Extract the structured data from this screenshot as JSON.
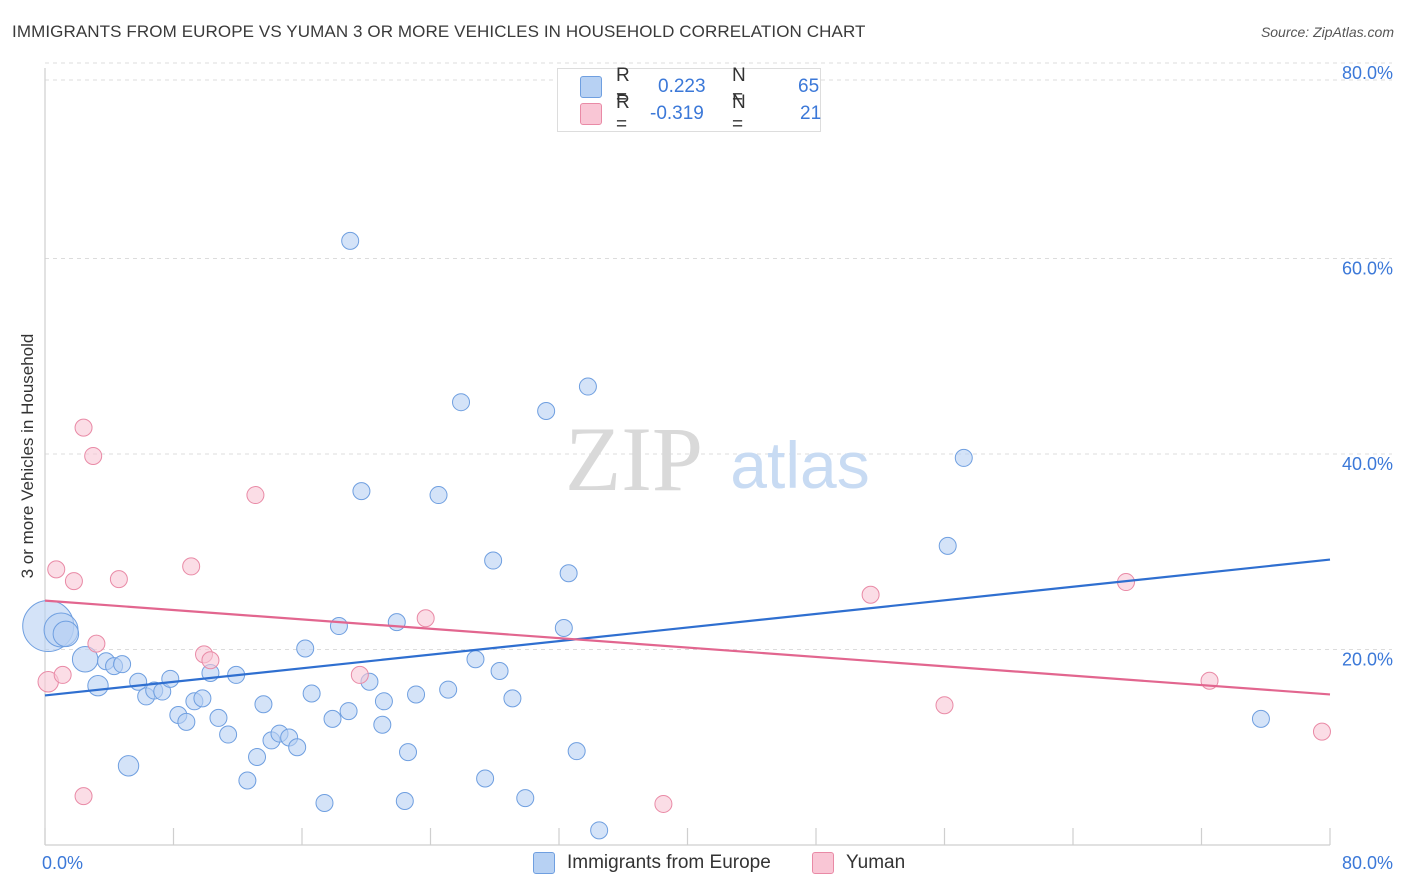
{
  "header": {
    "title": "IMMIGRANTS FROM EUROPE VS YUMAN 3 OR MORE VEHICLES IN HOUSEHOLD CORRELATION CHART",
    "source": "Source: ZipAtlas.com"
  },
  "watermark": {
    "zip": "ZIP",
    "atlas": "atlas"
  },
  "legend": {
    "rows": [
      {
        "r_label": "R =",
        "r_value": "0.223",
        "n_label": "N =",
        "n_value": "65",
        "color": "#a9c8f0"
      },
      {
        "r_label": "R =",
        "r_value": "-0.319",
        "n_label": "N =",
        "n_value": "21",
        "color": "#f7b9cb"
      }
    ]
  },
  "chart_data": {
    "type": "scatter",
    "title": "IMMIGRANTS FROM EUROPE VS YUMAN 3 OR MORE VEHICLES IN HOUSEHOLD CORRELATION CHART",
    "xlabel": "",
    "ylabel": "3 or more Vehicles in Household",
    "xlim": [
      0,
      80
    ],
    "ylim": [
      0,
      80
    ],
    "x_tick_labels": [
      "0.0%",
      "80.0%"
    ],
    "y_ticks": [
      20,
      40,
      60,
      80
    ],
    "y_tick_labels": [
      "20.0%",
      "40.0%",
      "60.0%",
      "80.0%"
    ],
    "grid": true,
    "legend_position": "bottom",
    "series": [
      {
        "name": "Immigrants from Europe",
        "color": "#6f9fe0",
        "fill": "#b7d1f3",
        "trend": {
          "x": [
            0,
            80
          ],
          "y": [
            15.3,
            29.2
          ],
          "color": "#2f6fd0"
        },
        "points": [
          [
            0.2,
            22.4,
            3
          ],
          [
            1.0,
            22.0,
            2
          ],
          [
            1.3,
            21.6,
            1.5
          ],
          [
            2.5,
            19.0,
            1.5
          ],
          [
            3.3,
            16.3,
            1.2
          ],
          [
            3.8,
            18.8,
            1
          ],
          [
            4.3,
            18.3,
            1
          ],
          [
            4.8,
            18.5,
            1
          ],
          [
            5.2,
            8.1,
            1.2
          ],
          [
            5.8,
            16.7,
            1
          ],
          [
            6.3,
            15.2,
            1
          ],
          [
            6.8,
            15.8,
            1
          ],
          [
            7.3,
            15.7,
            1
          ],
          [
            7.8,
            17.0,
            1
          ],
          [
            8.3,
            13.3,
            1
          ],
          [
            8.8,
            12.6,
            1
          ],
          [
            9.3,
            14.7,
            1
          ],
          [
            9.8,
            15.0,
            1
          ],
          [
            10.3,
            17.6,
            1
          ],
          [
            10.8,
            13.0,
            1
          ],
          [
            11.4,
            11.3,
            1
          ],
          [
            11.9,
            17.4,
            1
          ],
          [
            12.6,
            6.6,
            1
          ],
          [
            13.2,
            9.0,
            1
          ],
          [
            13.6,
            14.4,
            1
          ],
          [
            14.1,
            10.7,
            1
          ],
          [
            14.6,
            11.4,
            1
          ],
          [
            15.2,
            11.0,
            1
          ],
          [
            15.7,
            10.0,
            1
          ],
          [
            16.2,
            20.1,
            1
          ],
          [
            16.6,
            15.5,
            1
          ],
          [
            17.4,
            4.3,
            1
          ],
          [
            17.9,
            12.9,
            1
          ],
          [
            18.3,
            22.4,
            1
          ],
          [
            18.9,
            13.7,
            1
          ],
          [
            19.0,
            61.8,
            1
          ],
          [
            19.7,
            36.2,
            1
          ],
          [
            20.2,
            16.7,
            1
          ],
          [
            21.0,
            12.3,
            1
          ],
          [
            21.1,
            14.7,
            1
          ],
          [
            21.9,
            22.8,
            1
          ],
          [
            22.4,
            4.5,
            1
          ],
          [
            22.6,
            9.5,
            1
          ],
          [
            23.1,
            15.4,
            1
          ],
          [
            24.5,
            35.8,
            1
          ],
          [
            25.1,
            15.9,
            1
          ],
          [
            25.9,
            45.3,
            1
          ],
          [
            26.8,
            19.0,
            1
          ],
          [
            27.4,
            6.8,
            1
          ],
          [
            27.9,
            29.1,
            1
          ],
          [
            28.3,
            17.8,
            1
          ],
          [
            29.1,
            15.0,
            1
          ],
          [
            29.9,
            4.8,
            1
          ],
          [
            31.2,
            44.4,
            1
          ],
          [
            32.3,
            22.2,
            1
          ],
          [
            32.6,
            27.8,
            1
          ],
          [
            33.1,
            9.6,
            1
          ],
          [
            33.8,
            46.9,
            1
          ],
          [
            34.5,
            1.5,
            1
          ],
          [
            56.2,
            30.6,
            1
          ],
          [
            57.2,
            39.6,
            1
          ],
          [
            75.7,
            12.9,
            1
          ]
        ]
      },
      {
        "name": "Yuman",
        "color": "#e98aa6",
        "fill": "#f9c6d5",
        "trend": {
          "x": [
            0,
            80
          ],
          "y": [
            25.0,
            15.4
          ],
          "color": "#e2668f"
        },
        "points": [
          [
            0.2,
            16.7,
            1.2
          ],
          [
            0.7,
            28.2,
            1
          ],
          [
            1.1,
            17.4,
            1
          ],
          [
            1.8,
            27.0,
            1
          ],
          [
            2.4,
            42.7,
            1
          ],
          [
            2.4,
            5.0,
            1
          ],
          [
            3.0,
            39.8,
            1
          ],
          [
            3.2,
            20.6,
            1
          ],
          [
            4.6,
            27.2,
            1
          ],
          [
            9.1,
            28.5,
            1
          ],
          [
            9.9,
            19.5,
            1
          ],
          [
            10.3,
            18.9,
            1
          ],
          [
            13.1,
            35.8,
            1
          ],
          [
            19.6,
            17.4,
            1
          ],
          [
            23.7,
            23.2,
            1
          ],
          [
            38.5,
            4.2,
            1
          ],
          [
            51.4,
            25.6,
            1
          ],
          [
            56.0,
            14.3,
            1
          ],
          [
            67.3,
            26.9,
            1
          ],
          [
            72.5,
            16.8,
            1
          ],
          [
            79.5,
            11.6,
            1
          ]
        ]
      }
    ]
  }
}
